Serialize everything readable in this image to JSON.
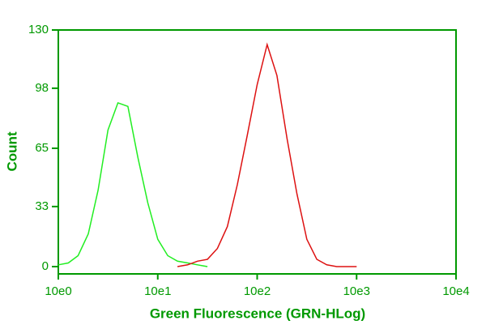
{
  "chart_data": {
    "type": "line",
    "xlabel": "Green Fluorescence (GRN-HLog)",
    "ylabel": "Count",
    "xscale": "log",
    "xlim": [
      1,
      10000
    ],
    "ylim": [
      -4,
      130
    ],
    "xticks": [
      {
        "value": 1,
        "label": "10e0"
      },
      {
        "value": 10,
        "label": "10e1"
      },
      {
        "value": 100,
        "label": "10e2"
      },
      {
        "value": 1000,
        "label": "10e3"
      },
      {
        "value": 10000,
        "label": "10e4"
      }
    ],
    "yticks": [
      0,
      33,
      65,
      98,
      130
    ],
    "axis_color": "#009900",
    "series": [
      {
        "color": "#22ee22",
        "x": [
          1,
          1.26,
          1.58,
          2,
          2.51,
          3.16,
          3.98,
          5.01,
          6.31,
          7.94,
          10,
          12.6,
          15.8,
          20,
          25.1,
          31.6
        ],
        "values": [
          1,
          2,
          6,
          18,
          42,
          75,
          90,
          88,
          60,
          35,
          15,
          6,
          3,
          2,
          1,
          0
        ]
      },
      {
        "color": "#dd1111",
        "x": [
          15.8,
          20,
          25.1,
          31.6,
          39.8,
          50.1,
          63.1,
          79.4,
          100,
          126,
          158,
          200,
          251,
          316,
          398,
          501,
          631,
          794,
          1000
        ],
        "values": [
          0,
          1,
          3,
          4,
          10,
          22,
          45,
          72,
          100,
          122,
          105,
          70,
          40,
          15,
          4,
          1,
          0,
          0,
          0
        ]
      }
    ]
  }
}
